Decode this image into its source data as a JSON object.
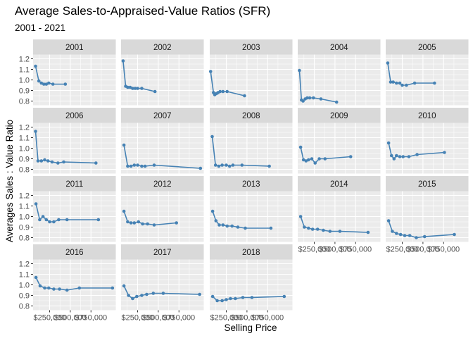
{
  "chart_data": {
    "type": "line",
    "title": "Average Sales-to-Appraised-Value Ratios (SFR)",
    "subtitle": "2001 - 2021",
    "xlabel": "Selling Price",
    "ylabel": "Averages Sales : Value Ratio",
    "xlim": [
      50000,
      1050000
    ],
    "ylim": [
      0.76,
      1.24
    ],
    "x_ticks": [
      250000,
      500000,
      750000
    ],
    "x_tick_labels": [
      "$250,000",
      "$500,000",
      "$750,000"
    ],
    "y_ticks": [
      0.8,
      0.9,
      1.0,
      1.1,
      1.2
    ],
    "y_tick_labels": [
      "0.8",
      "0.9",
      "1.0",
      "1.1",
      "1.2"
    ],
    "grid": true,
    "color": "#4682B4",
    "panels": [
      {
        "label": "2001",
        "x": [
          80000,
          120000,
          150000,
          180000,
          210000,
          240000,
          290000,
          440000
        ],
        "y": [
          1.13,
          0.99,
          0.97,
          0.96,
          0.96,
          0.97,
          0.96,
          0.96
        ]
      },
      {
        "label": "2002",
        "x": [
          75000,
          105000,
          130000,
          160000,
          190000,
          220000,
          250000,
          300000,
          460000
        ],
        "y": [
          1.18,
          0.94,
          0.93,
          0.93,
          0.92,
          0.92,
          0.92,
          0.92,
          0.89
        ]
      },
      {
        "label": "2003",
        "x": [
          60000,
          95000,
          110000,
          130000,
          150000,
          175000,
          210000,
          260000,
          470000
        ],
        "y": [
          1.08,
          0.88,
          0.86,
          0.87,
          0.88,
          0.89,
          0.89,
          0.89,
          0.85
        ]
      },
      {
        "label": "2004",
        "x": [
          70000,
          95000,
          115000,
          140000,
          165000,
          195000,
          240000,
          330000,
          520000
        ],
        "y": [
          1.09,
          0.81,
          0.8,
          0.82,
          0.83,
          0.83,
          0.83,
          0.82,
          0.79
        ]
      },
      {
        "label": "2005",
        "x": [
          75000,
          110000,
          140000,
          180000,
          220000,
          250000,
          300000,
          400000,
          640000
        ],
        "y": [
          1.16,
          0.98,
          0.98,
          0.97,
          0.97,
          0.95,
          0.95,
          0.97,
          0.97
        ]
      },
      {
        "label": "2006",
        "x": [
          80000,
          110000,
          150000,
          190000,
          230000,
          280000,
          350000,
          420000,
          810000
        ],
        "y": [
          1.16,
          0.88,
          0.88,
          0.89,
          0.88,
          0.87,
          0.86,
          0.87,
          0.86
        ]
      },
      {
        "label": "2007",
        "x": [
          85000,
          130000,
          170000,
          210000,
          250000,
          300000,
          340000,
          450000,
          1010000
        ],
        "y": [
          1.03,
          0.83,
          0.83,
          0.84,
          0.84,
          0.83,
          0.83,
          0.84,
          0.81
        ]
      },
      {
        "label": "2008",
        "x": [
          80000,
          120000,
          160000,
          200000,
          250000,
          290000,
          330000,
          440000,
          770000
        ],
        "y": [
          1.11,
          0.84,
          0.83,
          0.84,
          0.84,
          0.83,
          0.84,
          0.84,
          0.83
        ]
      },
      {
        "label": "2009",
        "x": [
          85000,
          120000,
          150000,
          180000,
          220000,
          260000,
          310000,
          380000,
          690000
        ],
        "y": [
          1.01,
          0.89,
          0.88,
          0.89,
          0.9,
          0.86,
          0.9,
          0.9,
          0.92
        ]
      },
      {
        "label": "2010",
        "x": [
          85000,
          120000,
          150000,
          180000,
          220000,
          260000,
          330000,
          430000,
          760000
        ],
        "y": [
          1.05,
          0.93,
          0.9,
          0.93,
          0.92,
          0.92,
          0.92,
          0.94,
          0.96
        ]
      },
      {
        "label": "2011",
        "x": [
          85000,
          130000,
          170000,
          210000,
          250000,
          300000,
          360000,
          460000,
          840000
        ],
        "y": [
          1.12,
          0.97,
          1.0,
          0.97,
          0.95,
          0.95,
          0.97,
          0.97,
          0.97
        ]
      },
      {
        "label": "2012",
        "x": [
          85000,
          130000,
          170000,
          210000,
          260000,
          310000,
          370000,
          450000,
          720000
        ],
        "y": [
          1.05,
          0.95,
          0.94,
          0.94,
          0.95,
          0.93,
          0.93,
          0.92,
          0.94
        ]
      },
      {
        "label": "2013",
        "x": [
          85000,
          125000,
          165000,
          210000,
          260000,
          320000,
          390000,
          480000,
          790000
        ],
        "y": [
          1.05,
          0.96,
          0.92,
          0.92,
          0.91,
          0.91,
          0.9,
          0.89,
          0.89
        ]
      },
      {
        "label": "2014",
        "x": [
          85000,
          130000,
          180000,
          230000,
          290000,
          360000,
          440000,
          560000,
          900000
        ],
        "y": [
          1.0,
          0.9,
          0.89,
          0.88,
          0.88,
          0.87,
          0.86,
          0.86,
          0.85
        ]
      },
      {
        "label": "2015",
        "x": [
          85000,
          130000,
          180000,
          230000,
          280000,
          340000,
          420000,
          520000,
          880000
        ],
        "y": [
          0.96,
          0.86,
          0.84,
          0.83,
          0.82,
          0.82,
          0.8,
          0.81,
          0.83
        ]
      },
      {
        "label": "2016",
        "x": [
          85000,
          135000,
          190000,
          240000,
          300000,
          370000,
          460000,
          610000,
          1010000
        ],
        "y": [
          1.07,
          0.99,
          0.97,
          0.97,
          0.96,
          0.96,
          0.95,
          0.97,
          0.97
        ]
      },
      {
        "label": "2017",
        "x": [
          85000,
          140000,
          190000,
          240000,
          300000,
          360000,
          440000,
          560000,
          1000000
        ],
        "y": [
          0.99,
          0.9,
          0.87,
          0.89,
          0.9,
          0.91,
          0.92,
          0.92,
          0.91
        ]
      },
      {
        "label": "2018",
        "x": [
          85000,
          140000,
          200000,
          250000,
          300000,
          360000,
          450000,
          560000,
          950000
        ],
        "y": [
          0.89,
          0.85,
          0.85,
          0.86,
          0.87,
          0.87,
          0.88,
          0.88,
          0.89
        ]
      }
    ]
  }
}
